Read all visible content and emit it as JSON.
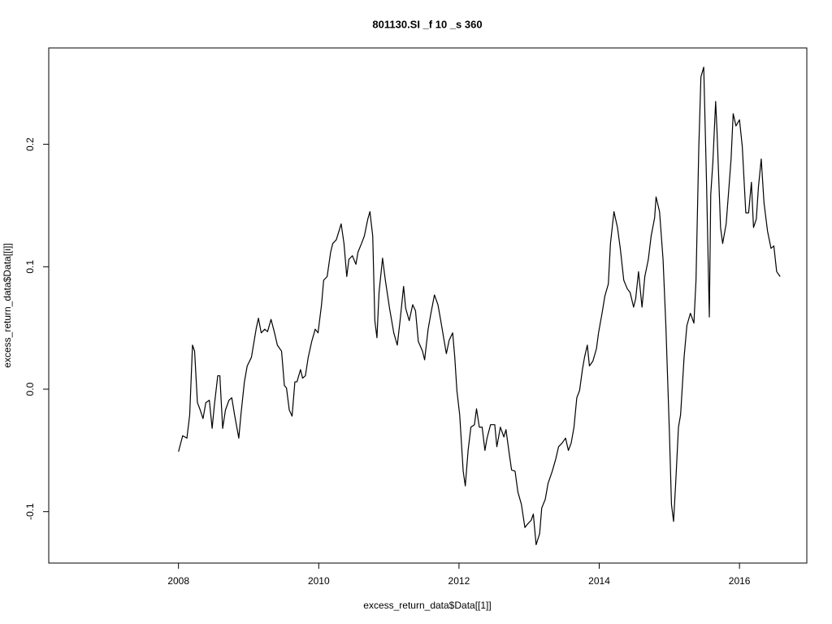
{
  "chart_data": {
    "type": "line",
    "title": "801130.SI _f 10 _s 360",
    "xlabel": "excess_return_data$Data[[1]]",
    "ylabel": "excess_return_data$Data[[i]]",
    "xlim": [
      2006.15,
      2016.96
    ],
    "ylim": [
      -0.142,
      0.2787
    ],
    "xticks": [
      2008,
      2010,
      2012,
      2014,
      2016
    ],
    "yticks": [
      -0.1,
      {
        "value": 0,
        "label": "0.0"
      },
      0.1,
      0.2
    ],
    "x": [
      2008.0,
      2008.06,
      2008.12,
      2008.16,
      2008.2,
      2008.23,
      2008.27,
      2008.31,
      2008.35,
      2008.39,
      2008.44,
      2008.48,
      2008.51,
      2008.56,
      2008.59,
      2008.63,
      2008.67,
      2008.72,
      2008.76,
      2008.8,
      2008.86,
      2008.89,
      2008.94,
      2008.98,
      2009.04,
      2009.11,
      2009.14,
      2009.18,
      2009.23,
      2009.27,
      2009.32,
      2009.37,
      2009.41,
      2009.47,
      2009.51,
      2009.54,
      2009.58,
      2009.62,
      2009.66,
      2009.69,
      2009.74,
      2009.77,
      2009.81,
      2009.85,
      2009.9,
      2009.95,
      2009.99,
      2010.04,
      2010.07,
      2010.12,
      2010.17,
      2010.2,
      2010.25,
      2010.32,
      2010.36,
      2010.4,
      2010.43,
      2010.48,
      2010.53,
      2010.56,
      2010.61,
      2010.65,
      2010.7,
      2010.73,
      2010.77,
      2010.8,
      2010.83,
      2010.86,
      2010.91,
      2010.95,
      2011.01,
      2011.07,
      2011.12,
      2011.16,
      2011.21,
      2011.24,
      2011.29,
      2011.34,
      2011.38,
      2011.42,
      2011.48,
      2011.51,
      2011.56,
      2011.6,
      2011.65,
      2011.7,
      2011.74,
      2011.79,
      2011.82,
      2011.86,
      2011.91,
      2011.94,
      2011.97,
      2012.01,
      2012.06,
      2012.09,
      2012.13,
      2012.17,
      2012.22,
      2012.25,
      2012.29,
      2012.33,
      2012.37,
      2012.4,
      2012.45,
      2012.51,
      2012.54,
      2012.59,
      2012.64,
      2012.67,
      2012.72,
      2012.75,
      2012.8,
      2012.84,
      2012.89,
      2012.94,
      2012.98,
      2013.03,
      2013.06,
      2013.1,
      2013.15,
      2013.18,
      2013.23,
      2013.27,
      2013.33,
      2013.38,
      2013.42,
      2013.47,
      2013.52,
      2013.56,
      2013.6,
      2013.64,
      2013.68,
      2013.72,
      2013.76,
      2013.79,
      2013.83,
      2013.86,
      2013.91,
      2013.96,
      2013.99,
      2014.04,
      2014.08,
      2014.13,
      2014.16,
      2014.21,
      2014.26,
      2014.3,
      2014.35,
      2014.4,
      2014.44,
      2014.49,
      2014.52,
      2014.56,
      2014.61,
      2014.65,
      2014.7,
      2014.74,
      2014.79,
      2014.81,
      2014.86,
      2014.91,
      2014.95,
      2015.0,
      2015.03,
      2015.06,
      2015.09,
      2015.13,
      2015.16,
      2015.21,
      2015.25,
      2015.3,
      2015.35,
      2015.38,
      2015.42,
      2015.45,
      2015.49,
      2015.53,
      2015.57,
      2015.59,
      2015.62,
      2015.66,
      2015.68,
      2015.73,
      2015.76,
      2015.81,
      2015.85,
      2015.88,
      2015.91,
      2015.95,
      2016.0,
      2016.04,
      2016.09,
      2016.13,
      2016.17,
      2016.2,
      2016.24,
      2016.27,
      2016.31,
      2016.35,
      2016.4,
      2016.45,
      2016.49,
      2016.53,
      2016.58
    ],
    "series": [
      {
        "color": "#000000",
        "values": [
          -0.051,
          -0.038,
          -0.04,
          -0.021,
          0.036,
          0.031,
          -0.011,
          -0.017,
          -0.024,
          -0.011,
          -0.009,
          -0.032,
          -0.014,
          0.011,
          0.011,
          -0.032,
          -0.017,
          -0.009,
          -0.007,
          -0.021,
          -0.04,
          -0.021,
          0.006,
          0.019,
          0.026,
          0.05,
          0.058,
          0.046,
          0.049,
          0.047,
          0.057,
          0.046,
          0.036,
          0.031,
          0.003,
          0.001,
          -0.017,
          -0.022,
          0.006,
          0.006,
          0.016,
          0.009,
          0.011,
          0.026,
          0.039,
          0.049,
          0.046,
          0.069,
          0.089,
          0.092,
          0.112,
          0.119,
          0.122,
          0.135,
          0.119,
          0.092,
          0.106,
          0.109,
          0.102,
          0.112,
          0.119,
          0.125,
          0.139,
          0.145,
          0.125,
          0.056,
          0.042,
          0.079,
          0.107,
          0.089,
          0.066,
          0.046,
          0.036,
          0.056,
          0.084,
          0.066,
          0.056,
          0.069,
          0.064,
          0.039,
          0.031,
          0.024,
          0.049,
          0.062,
          0.077,
          0.069,
          0.056,
          0.039,
          0.029,
          0.04,
          0.046,
          0.026,
          -0.001,
          -0.021,
          -0.067,
          -0.079,
          -0.05,
          -0.031,
          -0.029,
          -0.016,
          -0.031,
          -0.031,
          -0.05,
          -0.04,
          -0.029,
          -0.029,
          -0.047,
          -0.031,
          -0.039,
          -0.033,
          -0.054,
          -0.066,
          -0.067,
          -0.084,
          -0.094,
          -0.113,
          -0.11,
          -0.107,
          -0.102,
          -0.127,
          -0.118,
          -0.097,
          -0.09,
          -0.077,
          -0.067,
          -0.057,
          -0.047,
          -0.044,
          -0.04,
          -0.05,
          -0.044,
          -0.031,
          -0.007,
          -0.001,
          0.016,
          0.026,
          0.036,
          0.019,
          0.023,
          0.033,
          0.046,
          0.062,
          0.076,
          0.086,
          0.119,
          0.145,
          0.132,
          0.115,
          0.089,
          0.082,
          0.079,
          0.067,
          0.074,
          0.096,
          0.067,
          0.092,
          0.106,
          0.125,
          0.14,
          0.157,
          0.145,
          0.106,
          0.052,
          -0.034,
          -0.094,
          -0.108,
          -0.077,
          -0.031,
          -0.021,
          0.026,
          0.052,
          0.062,
          0.054,
          0.089,
          0.198,
          0.255,
          0.263,
          0.169,
          0.059,
          0.159,
          0.185,
          0.235,
          0.21,
          0.132,
          0.119,
          0.135,
          0.165,
          0.188,
          0.225,
          0.215,
          0.22,
          0.198,
          0.144,
          0.144,
          0.169,
          0.132,
          0.139,
          0.165,
          0.188,
          0.152,
          0.129,
          0.115,
          0.117,
          0.096,
          0.092
        ]
      }
    ]
  }
}
